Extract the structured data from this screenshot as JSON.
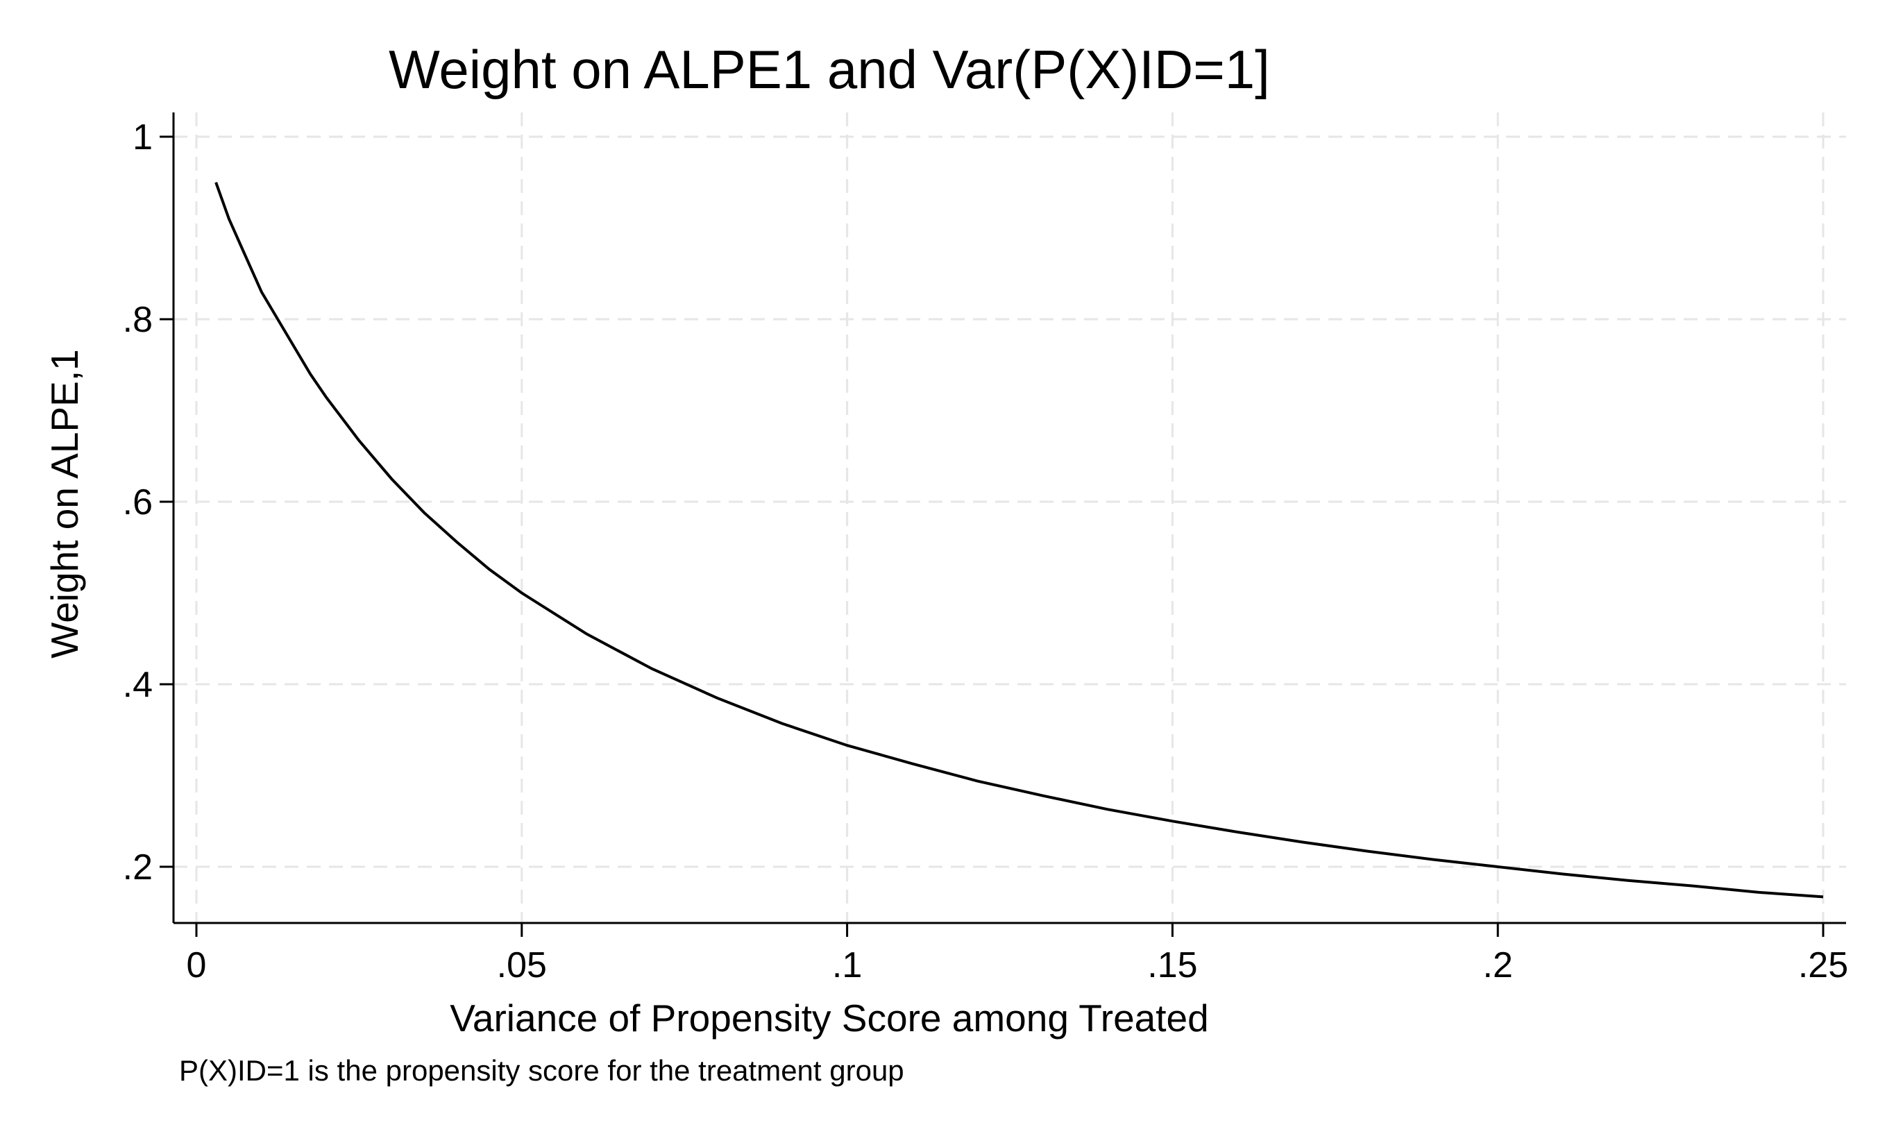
{
  "chart_data": {
    "type": "line",
    "title": "Weight on ALPE1 and Var(P(X)ID=1]",
    "xlabel": "Variance of Propensity Score among Treated",
    "ylabel": "Weight on ALPE,1",
    "note": "P(X)ID=1 is the propensity score for the treatment group",
    "xlim": [
      0,
      0.25
    ],
    "ylim": [
      0.2,
      1
    ],
    "x_ticks": [
      {
        "value": 0,
        "label": "0"
      },
      {
        "value": 0.05,
        "label": ".05"
      },
      {
        "value": 0.1,
        "label": ".1"
      },
      {
        "value": 0.15,
        "label": ".15"
      },
      {
        "value": 0.2,
        "label": ".2"
      },
      {
        "value": 0.25,
        "label": ".25"
      }
    ],
    "y_ticks": [
      {
        "value": 0.2,
        "label": ".2"
      },
      {
        "value": 0.4,
        "label": ".4"
      },
      {
        "value": 0.6,
        "label": ".6"
      },
      {
        "value": 0.8,
        "label": ".8"
      },
      {
        "value": 1,
        "label": "1"
      }
    ],
    "grid": true,
    "legend": "none",
    "series": [
      {
        "color": "#000000",
        "x": [
          0.003,
          0.005,
          0.0075,
          0.01,
          0.0125,
          0.015,
          0.0175,
          0.02,
          0.025,
          0.03,
          0.035,
          0.04,
          0.045,
          0.05,
          0.06,
          0.07,
          0.08,
          0.09,
          0.1,
          0.11,
          0.12,
          0.13,
          0.14,
          0.15,
          0.16,
          0.17,
          0.18,
          0.19,
          0.2,
          0.21,
          0.22,
          0.23,
          0.24,
          0.25
        ],
        "y": [
          0.95,
          0.91,
          0.87,
          0.83,
          0.8,
          0.77,
          0.74,
          0.714,
          0.667,
          0.625,
          0.588,
          0.556,
          0.526,
          0.5,
          0.455,
          0.417,
          0.385,
          0.357,
          0.333,
          0.313,
          0.294,
          0.278,
          0.263,
          0.25,
          0.238,
          0.227,
          0.217,
          0.208,
          0.2,
          0.192,
          0.185,
          0.179,
          0.172,
          0.167
        ]
      }
    ]
  }
}
